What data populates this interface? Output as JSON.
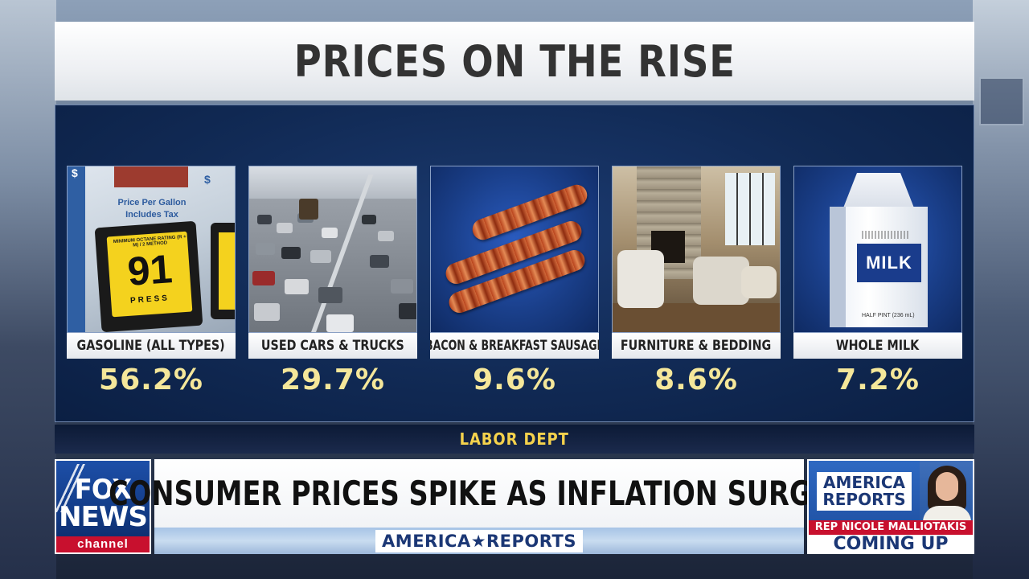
{
  "title": "PRICES ON THE RISE",
  "items": [
    {
      "label": "GASOLINE (ALL TYPES)",
      "value": "56.2%"
    },
    {
      "label": "USED CARS & TRUCKS",
      "value": "29.7%"
    },
    {
      "label": "BACON & BREAKFAST SAUSAGE",
      "value": "9.6%"
    },
    {
      "label": "FURNITURE & BEDDING",
      "value": "8.6%"
    },
    {
      "label": "WHOLE MILK",
      "value": "7.2%"
    }
  ],
  "gas_image": {
    "price_per_gallon": "Price Per Gallon",
    "includes_tax": "Includes Tax",
    "octane_rating": "MINIMUM OCTANE RATING (R + M) / 2 METHOD",
    "octane": "91",
    "press": "PRESS",
    "dollar": "$"
  },
  "milk_image": {
    "carton_label": "MILK",
    "size": "HALF PINT (236 mL)"
  },
  "source": "LABOR DEPT",
  "logo": {
    "fox": "FOX",
    "news": "NEWS",
    "channel": "channel"
  },
  "headline": "CONSUMER PRICES SPIKE AS INFLATION SURGES",
  "show_name": "AMERICA★REPORTS",
  "promo": {
    "show": "AMERICA REPORTS",
    "name": "REP NICOLE MALLIOTAKIS",
    "coming_up": "COMING UP"
  },
  "colors": {
    "panel_navy": "#112a55",
    "value_yellow": "#f5e79a",
    "source_yellow": "#f5d24c",
    "fox_blue": "#123a84",
    "fox_red": "#c8102e"
  }
}
